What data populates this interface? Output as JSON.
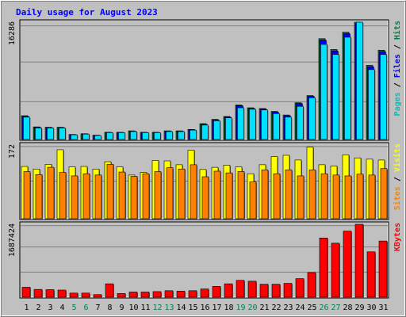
{
  "chart_data": {
    "type": "bar",
    "title": "Daily usage for August 2023",
    "colors": {
      "background": "#c0c0c0",
      "plot": "#c0c0c0",
      "title": "#0000ff",
      "pages": "#00c0c0",
      "pages_light": "#00e0ff",
      "files": "#0000ff",
      "hits": "#008040",
      "sites": "#ff8000",
      "visits": "#ffff00",
      "kbytes": "#ff0000",
      "weekend_label": "#00805c",
      "weekday_label": "#000000",
      "gridline": "#808080"
    },
    "categories": [
      "1",
      "2",
      "3",
      "4",
      "5",
      "6",
      "7",
      "8",
      "9",
      "10",
      "11",
      "12",
      "13",
      "14",
      "15",
      "16",
      "17",
      "18",
      "19",
      "20",
      "21",
      "22",
      "23",
      "24",
      "25",
      "26",
      "27",
      "28",
      "29",
      "30",
      "31"
    ],
    "weekend_days": [
      "5",
      "6",
      "12",
      "13",
      "19",
      "20",
      "26",
      "27"
    ],
    "panels": [
      {
        "key": "hits_files_pages",
        "ymax_label": "16286",
        "ymax": 16286,
        "legend": [
          {
            "text": "Pages",
            "color": "#00c0c0"
          },
          {
            "text": " / ",
            "color": "#000000"
          },
          {
            "text": "Files",
            "color": "#0000ff"
          },
          {
            "text": " / ",
            "color": "#000000"
          },
          {
            "text": "Hits",
            "color": "#008040"
          }
        ],
        "series": [
          {
            "name": "Hits",
            "color": "#008040",
            "values": [
              3300,
              1750,
              1700,
              1700,
              700,
              800,
              600,
              1000,
              1000,
              1200,
              1000,
              1000,
              1200,
              1200,
              1400,
              2200,
              2800,
              3200,
              4800,
              4400,
              4300,
              3900,
              3400,
              5100,
              6100,
              14000,
              12500,
              14900,
              16286,
              10300,
              12400
            ]
          },
          {
            "name": "Files",
            "color": "#0000ff",
            "values": [
              3200,
              1700,
              1650,
              1650,
              680,
              780,
              580,
              980,
              980,
              1150,
              980,
              980,
              1150,
              1150,
              1350,
              2100,
              2700,
              3100,
              4700,
              4300,
              4200,
              3800,
              3300,
              5000,
              6000,
              13800,
              12300,
              14700,
              16100,
              10100,
              12200
            ]
          },
          {
            "name": "Pages",
            "color": "#00e0ff",
            "values": [
              3100,
              1600,
              1600,
              1600,
              650,
              750,
              550,
              950,
              950,
              1100,
              950,
              950,
              1100,
              1100,
              1300,
              2000,
              2600,
              3000,
              4400,
              4200,
              4100,
              3600,
              3100,
              4600,
              5800,
              13200,
              11800,
              14200,
              16286,
              9700,
              11800
            ]
          }
        ]
      },
      {
        "key": "visits_sites",
        "ymax_label": "172",
        "ymax": 172,
        "legend": [
          {
            "text": "Sites",
            "color": "#ff8000"
          },
          {
            "text": " / ",
            "color": "#000000"
          },
          {
            "text": "Visits",
            "color": "#ffff00"
          }
        ],
        "series": [
          {
            "name": "Visits",
            "color": "#ffff00",
            "values": [
              122,
              116,
              127,
              161,
              121,
              122,
              116,
              133,
              121,
              102,
              108,
              136,
              135,
              126,
              160,
              115,
              120,
              125,
              121,
              105,
              126,
              145,
              148,
              137,
              167,
              126,
              123,
              149,
              142,
              139,
              137
            ]
          },
          {
            "name": "Sites",
            "color": "#ff8000",
            "values": [
              110,
              103,
              120,
              108,
              100,
              105,
              102,
              127,
              109,
              99,
              105,
              110,
              119,
              116,
              126,
              98,
              111,
              107,
              110,
              86,
              114,
              105,
              114,
              100,
              114,
              105,
              102,
              100,
              104,
              102,
              117
            ]
          }
        ]
      },
      {
        "key": "kbytes",
        "ymax_label": "1687424",
        "ymax": 1687424,
        "legend": [
          {
            "text": "KBytes",
            "color": "#ff0000"
          }
        ],
        "series": [
          {
            "name": "KBytes",
            "color": "#ff0000",
            "values": [
              230000,
              180000,
              175000,
              165000,
              95000,
              95000,
              60000,
              310000,
              85000,
              120000,
              120000,
              130000,
              150000,
              140000,
              150000,
              190000,
              250000,
              310000,
              390000,
              370000,
              300000,
              300000,
              320000,
              430000,
              570000,
              1370000,
              1250000,
              1530000,
              1687424,
              1050000,
              1300000
            ]
          }
        ]
      }
    ]
  }
}
